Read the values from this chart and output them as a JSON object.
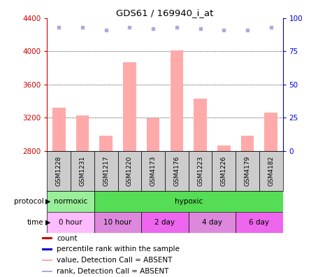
{
  "title": "GDS61 / 169940_i_at",
  "samples": [
    "GSM1228",
    "GSM1231",
    "GSM1217",
    "GSM1220",
    "GSM4173",
    "GSM4176",
    "GSM1223",
    "GSM1226",
    "GSM4179",
    "GSM4182"
  ],
  "bar_values": [
    3320,
    3230,
    2980,
    3870,
    3190,
    4010,
    3430,
    2870,
    2980,
    3260
  ],
  "rank_values": [
    93,
    93,
    91,
    93,
    92,
    93,
    92,
    91,
    91,
    93
  ],
  "ylim_left": [
    2800,
    4400
  ],
  "ylim_right": [
    0,
    100
  ],
  "yticks_left": [
    2800,
    3200,
    3600,
    4000,
    4400
  ],
  "yticks_right": [
    0,
    25,
    50,
    75,
    100
  ],
  "bar_color": "#ffaaaa",
  "rank_color": "#aaaadd",
  "left_axis_color": "#cc0000",
  "right_axis_color": "#0000cc",
  "gridlines_at": [
    3200,
    3600,
    4000
  ],
  "sample_box_color": "#cccccc",
  "proto_spans": [
    {
      "label": "normoxic",
      "start": 0,
      "end": 2,
      "color": "#99ee99"
    },
    {
      "label": "hypoxic",
      "start": 2,
      "end": 10,
      "color": "#55dd55"
    }
  ],
  "time_spans": [
    {
      "label": "0 hour",
      "start": 0,
      "end": 2,
      "color": "#ffbbff"
    },
    {
      "label": "10 hour",
      "start": 2,
      "end": 4,
      "color": "#dd88dd"
    },
    {
      "label": "2 day",
      "start": 4,
      "end": 6,
      "color": "#ee66ee"
    },
    {
      "label": "4 day",
      "start": 6,
      "end": 8,
      "color": "#dd88dd"
    },
    {
      "label": "6 day",
      "start": 8,
      "end": 10,
      "color": "#ee66ee"
    }
  ],
  "legend_items": [
    {
      "label": "count",
      "color": "#cc0000"
    },
    {
      "label": "percentile rank within the sample",
      "color": "#0000cc"
    },
    {
      "label": "value, Detection Call = ABSENT",
      "color": "#ffaaaa"
    },
    {
      "label": "rank, Detection Call = ABSENT",
      "color": "#aaaadd"
    }
  ]
}
